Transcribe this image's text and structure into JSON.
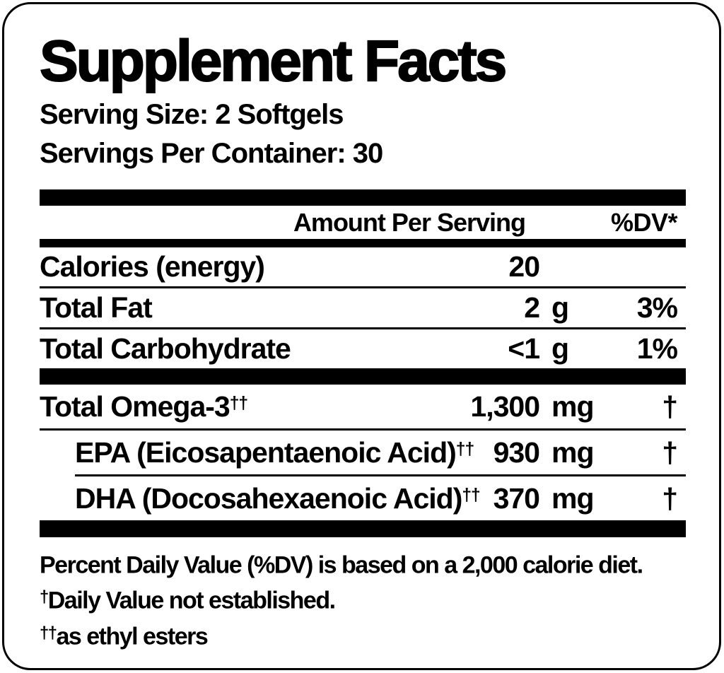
{
  "panel": {
    "title": "Supplement Facts",
    "serving_size": "Serving Size: 2 Softgels",
    "servings_per_container": "Servings Per Container: 30"
  },
  "table": {
    "amount_header": "Amount Per Serving",
    "dv_header": "%DV*",
    "rows": [
      {
        "name": "Calories (energy)",
        "sup": "",
        "amount": "20",
        "unit": "",
        "dv": ""
      },
      {
        "name": "Total Fat",
        "sup": "",
        "amount": "2",
        "unit": "g",
        "dv": "3%"
      },
      {
        "name": "Total Carbohydrate",
        "sup": "",
        "amount": "<1",
        "unit": "g",
        "dv": "1%"
      },
      {
        "name": "Total Omega-3",
        "sup": "††",
        "amount": "1,300",
        "unit": "mg",
        "dv": "†"
      },
      {
        "name": "EPA (Eicosapentaenoic Acid)",
        "sup": "††",
        "amount": "930",
        "unit": "mg",
        "dv": "†"
      },
      {
        "name": "DHA (Docosahexaenoic Acid)",
        "sup": "††",
        "amount": "370",
        "unit": "mg",
        "dv": "†"
      }
    ]
  },
  "footnotes": [
    {
      "prefix": "",
      "text": "Percent Daily Value (%DV) is based on a 2,000 calorie diet."
    },
    {
      "prefix": "†",
      "text": "Daily Value not established."
    },
    {
      "prefix": "††",
      "text": "as ethyl esters"
    }
  ],
  "colors": {
    "ink": "#000000",
    "background": "#ffffff"
  }
}
